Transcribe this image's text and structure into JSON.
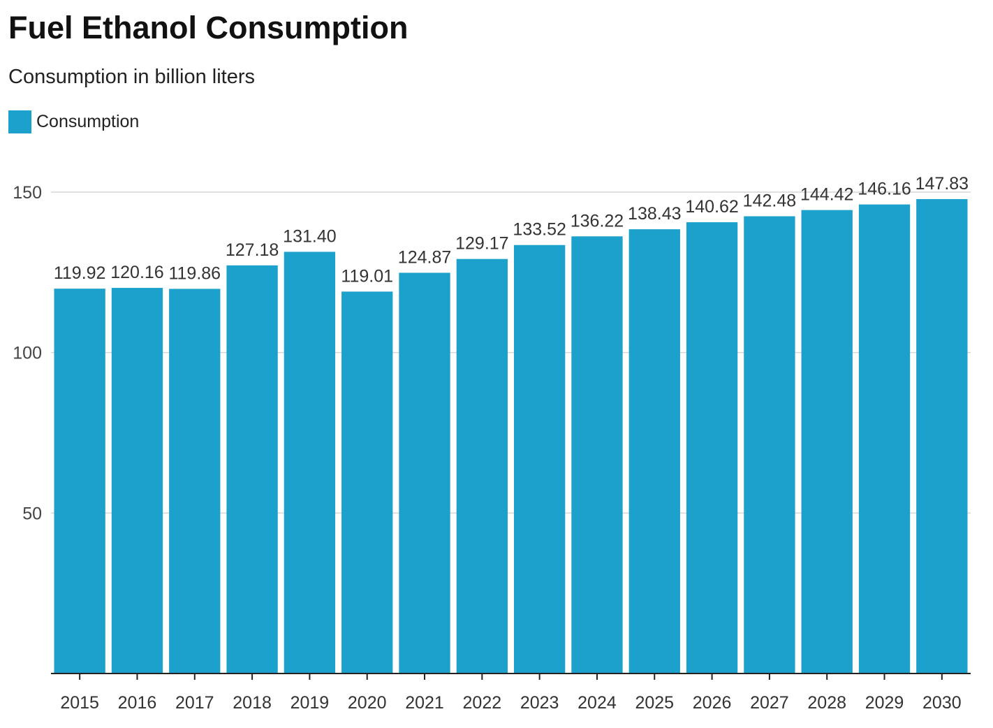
{
  "chart_data": {
    "type": "bar",
    "title": "Fuel Ethanol Consumption",
    "subtitle": "Consumption in billion liters",
    "xlabel": "",
    "ylabel": "",
    "categories": [
      "2015",
      "2016",
      "2017",
      "2018",
      "2019",
      "2020",
      "2021",
      "2022",
      "2023",
      "2024",
      "2025",
      "2026",
      "2027",
      "2028",
      "2029",
      "2030"
    ],
    "series": [
      {
        "name": "Consumption",
        "color": "#1ba1cb",
        "values": [
          119.92,
          120.16,
          119.86,
          127.18,
          131.4,
          119.01,
          124.87,
          129.17,
          133.52,
          136.22,
          138.43,
          140.62,
          142.48,
          144.42,
          146.16,
          147.83
        ],
        "labels": [
          "119.92",
          "120.16",
          "119.86",
          "127.18",
          "131.40",
          "119.01",
          "124.87",
          "129.17",
          "133.52",
          "136.22",
          "138.43",
          "140.62",
          "142.48",
          "144.42",
          "146.16",
          "147.83"
        ]
      }
    ],
    "ylim": [
      0,
      150
    ],
    "yticks": [
      50,
      100,
      150
    ],
    "ytick_labels": [
      "50",
      "100",
      "150"
    ],
    "grid": true,
    "legend": "top-left"
  }
}
